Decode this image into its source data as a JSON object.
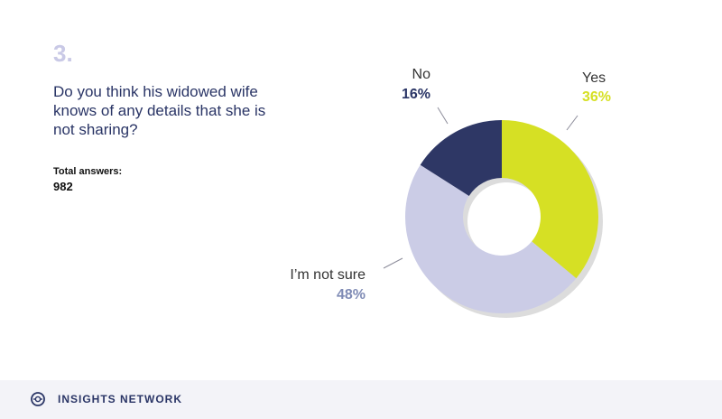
{
  "question": {
    "number": "3.",
    "text": "Do you think his widowed wife knows of any details that she is not sharing?",
    "total_label": "Total answers:",
    "total_value": "982"
  },
  "chart_data": {
    "type": "pie",
    "donut": true,
    "slices": [
      {
        "label": "Yes",
        "value": 36,
        "display": "36%",
        "color": "#d6e024",
        "label_color": "#d6e024"
      },
      {
        "label": "I’m not sure",
        "value": 48,
        "display": "48%",
        "color": "#cbcce6",
        "label_color": "#7f8bb5"
      },
      {
        "label": "No",
        "value": 16,
        "display": "16%",
        "color": "#2e3765",
        "label_color": "#2a3566"
      }
    ]
  },
  "footer": {
    "brand": "INSIGHTS NETWORK",
    "icon": "insights-network-logo-icon"
  }
}
